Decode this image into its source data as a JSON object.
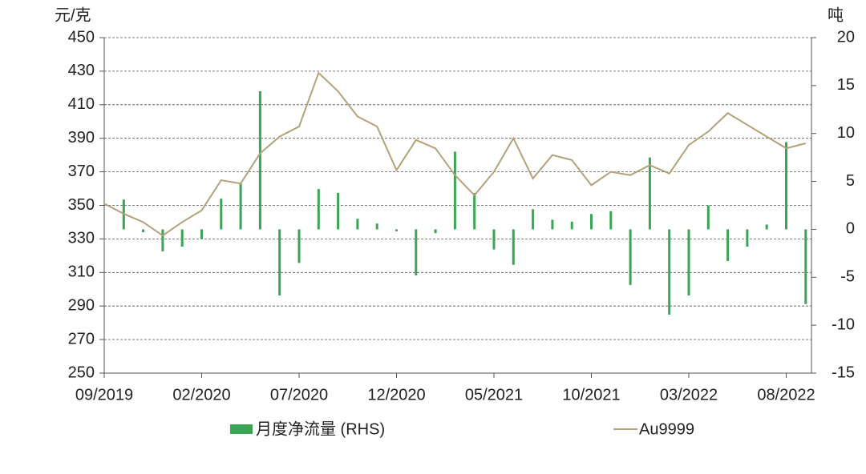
{
  "chart_data": {
    "type": "bar-line",
    "y_label": "元/克",
    "y2_label": "吨",
    "categories": [
      "09/2019",
      null,
      null,
      null,
      null,
      "02/2020",
      null,
      null,
      null,
      null,
      "07/2020",
      null,
      null,
      null,
      null,
      "12/2020",
      null,
      null,
      null,
      null,
      "05/2021",
      null,
      null,
      null,
      null,
      "10/2021",
      null,
      null,
      null,
      null,
      "03/2022",
      null,
      null,
      null,
      null,
      "08/2022",
      null
    ],
    "series": [
      {
        "name": "月度净流量 (RHS)",
        "type": "bar",
        "axis": "y2",
        "color": "#3aa655",
        "values": [
          null,
          3.1,
          -0.3,
          -2.3,
          -1.8,
          -1.0,
          3.2,
          4.8,
          14.4,
          -6.9,
          -3.5,
          4.2,
          3.8,
          1.1,
          0.6,
          -0.2,
          -4.8,
          -0.4,
          8.1,
          3.8,
          -2.1,
          -3.7,
          2.1,
          1.0,
          0.8,
          1.6,
          1.9,
          -5.8,
          7.5,
          -8.9,
          -6.9,
          2.5,
          -3.3,
          -1.8,
          0.5,
          9.1,
          -7.8
        ]
      },
      {
        "name": "Au9999",
        "type": "line",
        "axis": "y",
        "color": "#b5a27a",
        "values": [
          351,
          345,
          340,
          332,
          340,
          347,
          365,
          363,
          381,
          391,
          397,
          429,
          418,
          403,
          397,
          371,
          389,
          384,
          368,
          356,
          370,
          390,
          366,
          380,
          377,
          362,
          370,
          368,
          374,
          369,
          386,
          394,
          405,
          398,
          391,
          384,
          387
        ]
      }
    ],
    "ylim": [
      250,
      450
    ],
    "yticks": [
      250,
      270,
      290,
      310,
      330,
      350,
      370,
      390,
      410,
      430,
      450
    ],
    "y2lim": [
      -15,
      20
    ],
    "y2ticks": [
      -15,
      -10,
      -5,
      0,
      5,
      10,
      15,
      20
    ],
    "grid": true,
    "legend": "bottom"
  }
}
